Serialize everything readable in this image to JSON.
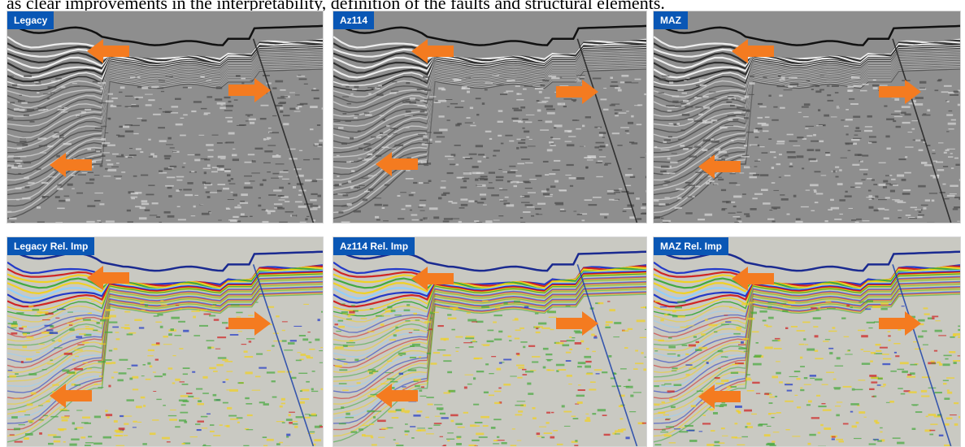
{
  "caption": "as clear improvements in the interpretability, definition of the faults and structural elements.",
  "colors": {
    "label_bg": "#0a57b5",
    "label_text": "#ffffff",
    "arrow": "#f47b20"
  },
  "arrow_icon": "orange-arrow-icon",
  "panels": [
    {
      "label": "Legacy",
      "style": "seismic"
    },
    {
      "label": "Az114",
      "style": "seismic"
    },
    {
      "label": "MAZ",
      "style": "seismic"
    },
    {
      "label": "Legacy Rel. Imp",
      "style": "impedance"
    },
    {
      "label": "Az114 Rel. Imp",
      "style": "impedance"
    },
    {
      "label": "MAZ Rel. Imp",
      "style": "impedance"
    }
  ]
}
